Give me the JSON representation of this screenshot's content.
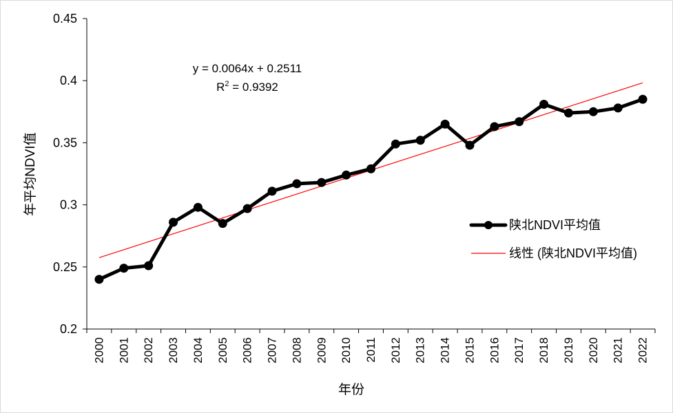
{
  "chart_data": {
    "type": "line",
    "xlabel": "年份",
    "ylabel": "年平均NDVI值",
    "ylim": [
      0.2,
      0.45
    ],
    "yticks": [
      "0.2",
      "0.25",
      "0.3",
      "0.35",
      "0.4",
      "0.45"
    ],
    "ytick_values": [
      0.2,
      0.25,
      0.3,
      0.35,
      0.4,
      0.45
    ],
    "categories": [
      "2000",
      "2001",
      "2002",
      "2003",
      "2004",
      "2005",
      "2006",
      "2007",
      "2008",
      "2009",
      "2010",
      "2011",
      "2012",
      "2013",
      "2014",
      "2015",
      "2016",
      "2017",
      "2018",
      "2019",
      "2020",
      "2021",
      "2022"
    ],
    "series": [
      {
        "name": "陕北NDVI平均值",
        "color": "#000000",
        "values": [
          0.24,
          0.249,
          0.251,
          0.286,
          0.298,
          0.285,
          0.297,
          0.311,
          0.317,
          0.318,
          0.324,
          0.329,
          0.349,
          0.352,
          0.365,
          0.348,
          0.363,
          0.367,
          0.381,
          0.374,
          0.375,
          0.378,
          0.385
        ]
      }
    ],
    "trendline": {
      "name": "线性 (陕北NDVI平均值)",
      "color": "#ff0000",
      "slope": 0.0064,
      "intercept": 0.2511,
      "equation": "y = 0.0064x + 0.2511",
      "r2_label": "R",
      "r2_sup": "2",
      "r2_value": " = 0.9392"
    },
    "legend_position": "right",
    "grid": false
  }
}
